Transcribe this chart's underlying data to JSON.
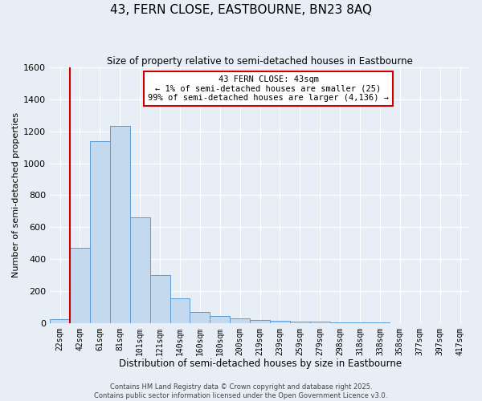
{
  "title": "43, FERN CLOSE, EASTBOURNE, BN23 8AQ",
  "subtitle": "Size of property relative to semi-detached houses in Eastbourne",
  "xlabel": "Distribution of semi-detached houses by size in Eastbourne",
  "ylabel": "Number of semi-detached properties",
  "bin_labels": [
    "22sqm",
    "42sqm",
    "61sqm",
    "81sqm",
    "101sqm",
    "121sqm",
    "140sqm",
    "160sqm",
    "180sqm",
    "200sqm",
    "219sqm",
    "239sqm",
    "259sqm",
    "279sqm",
    "298sqm",
    "318sqm",
    "338sqm",
    "358sqm",
    "377sqm",
    "397sqm",
    "417sqm"
  ],
  "bar_values": [
    25,
    470,
    1140,
    1235,
    660,
    300,
    155,
    70,
    45,
    30,
    18,
    15,
    10,
    7,
    5,
    3,
    2,
    1,
    1,
    0,
    0
  ],
  "bar_color": "#c5d9ee",
  "bar_edge_color": "#5b9bd5",
  "vline_color": "#cc0000",
  "annotation_title": "43 FERN CLOSE: 43sqm",
  "annotation_line1": "← 1% of semi-detached houses are smaller (25)",
  "annotation_line2": "99% of semi-detached houses are larger (4,136) →",
  "annotation_box_color": "#cc0000",
  "ylim": [
    0,
    1600
  ],
  "yticks": [
    0,
    200,
    400,
    600,
    800,
    1000,
    1200,
    1400,
    1600
  ],
  "background_color": "#e8eef5",
  "grid_color": "#ffffff",
  "footer1": "Contains HM Land Registry data © Crown copyright and database right 2025.",
  "footer2": "Contains public sector information licensed under the Open Government Licence v3.0."
}
